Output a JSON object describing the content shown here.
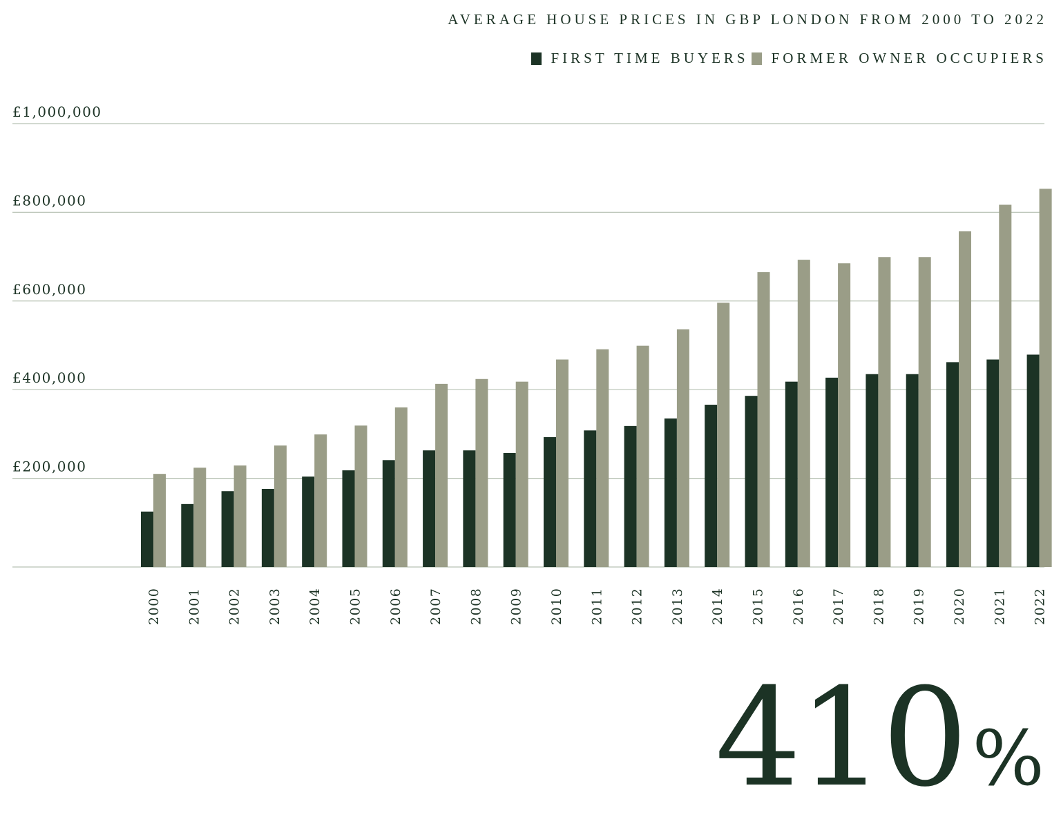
{
  "colors": {
    "first_time": "#1c3325",
    "former_owner": "#9a9d87",
    "gridline": "#b8c2b4",
    "text": "#1c3325"
  },
  "big_stat": {
    "number": "410",
    "symbol": "%"
  },
  "chart_data": {
    "type": "bar",
    "title": "AVERAGE HOUSE PRICES IN GBP LONDON FROM 2000 TO 2022",
    "categories": [
      "2000",
      "2001",
      "2002",
      "2003",
      "2004",
      "2005",
      "2006",
      "2007",
      "2008",
      "2009",
      "2010",
      "2011",
      "2012",
      "2013",
      "2014",
      "2015",
      "2016",
      "2017",
      "2018",
      "2019",
      "2020",
      "2021",
      "2022"
    ],
    "series": [
      {
        "name": "FIRST TIME BUYERS",
        "color": "#1c3325",
        "values": [
          125000,
          142000,
          171000,
          176000,
          204000,
          218000,
          241000,
          263000,
          263000,
          257000,
          293000,
          308000,
          318000,
          335000,
          366000,
          386000,
          418000,
          427000,
          435000,
          435000,
          462000,
          468000,
          479000
        ]
      },
      {
        "name": "FORMER OWNER OCCUPIERS",
        "color": "#9a9d87",
        "values": [
          210000,
          224000,
          229000,
          274000,
          299000,
          319000,
          360000,
          413000,
          424000,
          418000,
          468000,
          491000,
          499000,
          536000,
          596000,
          665000,
          693000,
          685000,
          699000,
          699000,
          757000,
          817000,
          853000
        ]
      }
    ],
    "y_ticks": [
      "£200,000",
      "£400,000",
      "£600,000",
      "£800,000",
      "£1,000,000"
    ],
    "y_tick_values": [
      200000,
      400000,
      600000,
      800000,
      1000000
    ],
    "ylim": [
      0,
      1000000
    ],
    "xlabel": "",
    "ylabel": "",
    "grid": true,
    "legend_position": "top-right"
  }
}
